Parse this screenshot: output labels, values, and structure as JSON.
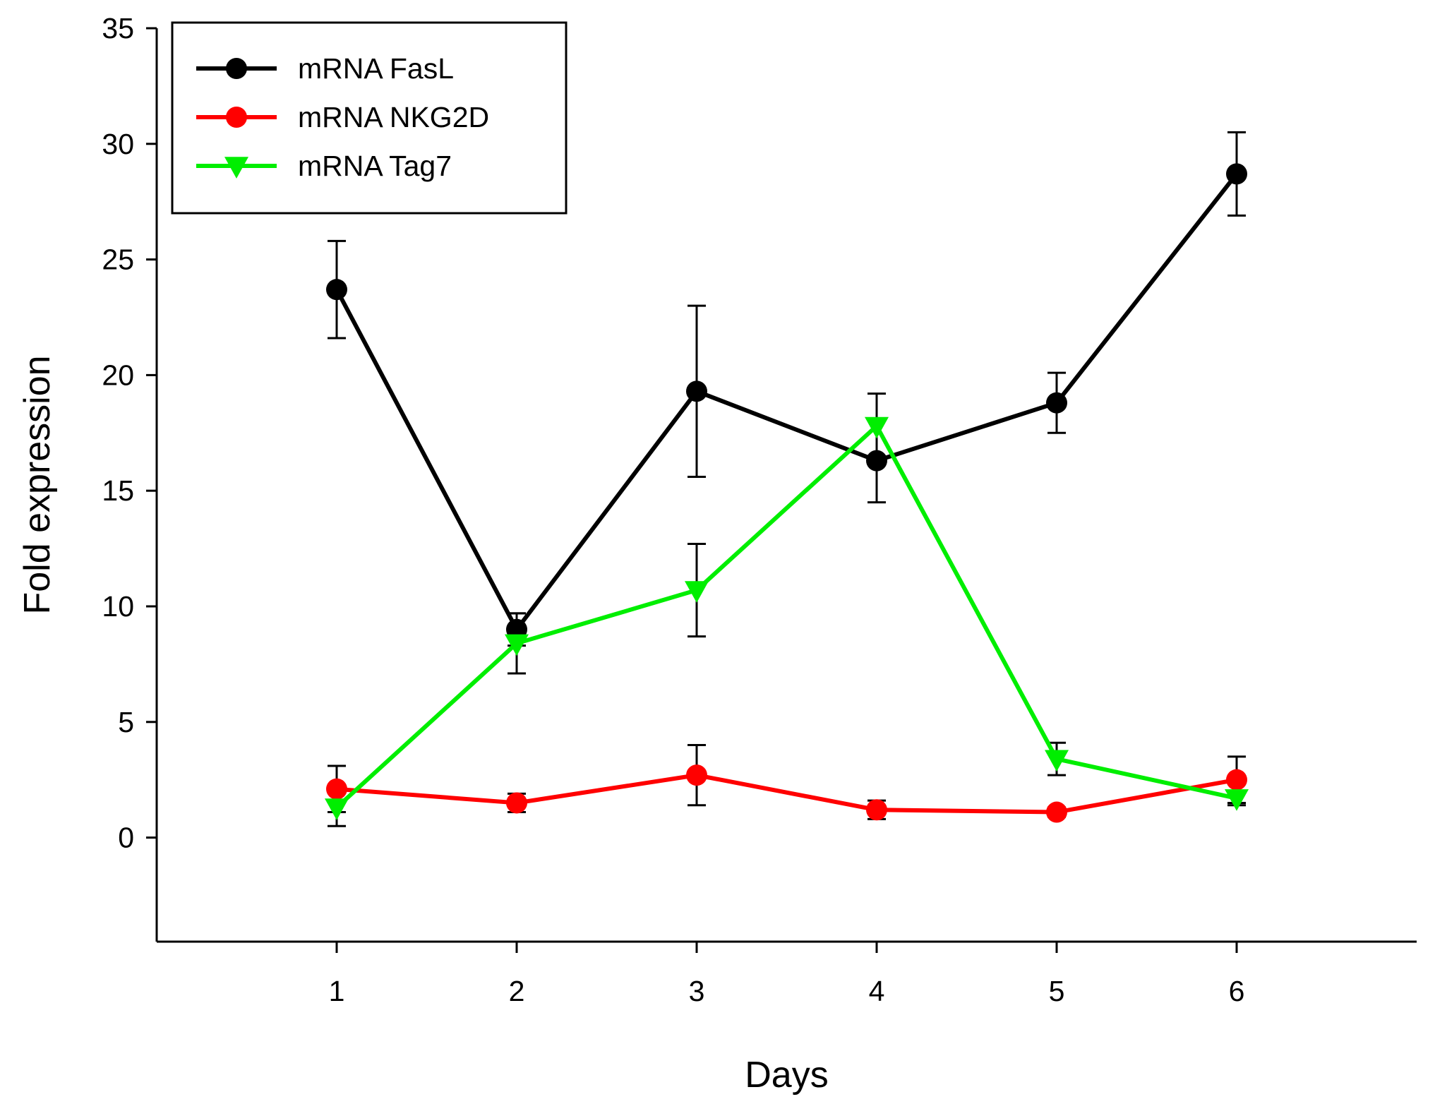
{
  "chart_data": {
    "type": "line",
    "title": "",
    "xlabel": "Days",
    "ylabel": "Fold expression",
    "x": [
      1,
      2,
      3,
      4,
      5,
      6
    ],
    "xlim": [
      0,
      7
    ],
    "ylim": [
      -4.5,
      35
    ],
    "yticks": [
      0,
      5,
      10,
      15,
      20,
      25,
      30,
      35
    ],
    "xticks": [
      1,
      2,
      3,
      4,
      5,
      6
    ],
    "grid": false,
    "legend_position": "top-left",
    "series": [
      {
        "name": "mRNA FasL",
        "color": "#000000",
        "marker": "circle",
        "values": [
          23.7,
          9.0,
          19.3,
          16.3,
          18.8,
          28.7
        ],
        "error": [
          2.1,
          0.7,
          3.7,
          1.8,
          1.3,
          1.8
        ]
      },
      {
        "name": "mRNA NKG2D",
        "color": "#ff0000",
        "marker": "circle",
        "values": [
          2.1,
          1.5,
          2.7,
          1.2,
          1.1,
          2.5
        ],
        "error": [
          1.0,
          0.4,
          1.3,
          0.4,
          0.2,
          1.0
        ]
      },
      {
        "name": "mRNA Tag7",
        "color": "#00ee00",
        "marker": "triangle-down",
        "values": [
          1.3,
          8.4,
          10.7,
          17.8,
          3.4,
          1.7
        ],
        "error": [
          0.8,
          1.3,
          2.0,
          1.4,
          0.7,
          0.3
        ]
      }
    ]
  }
}
